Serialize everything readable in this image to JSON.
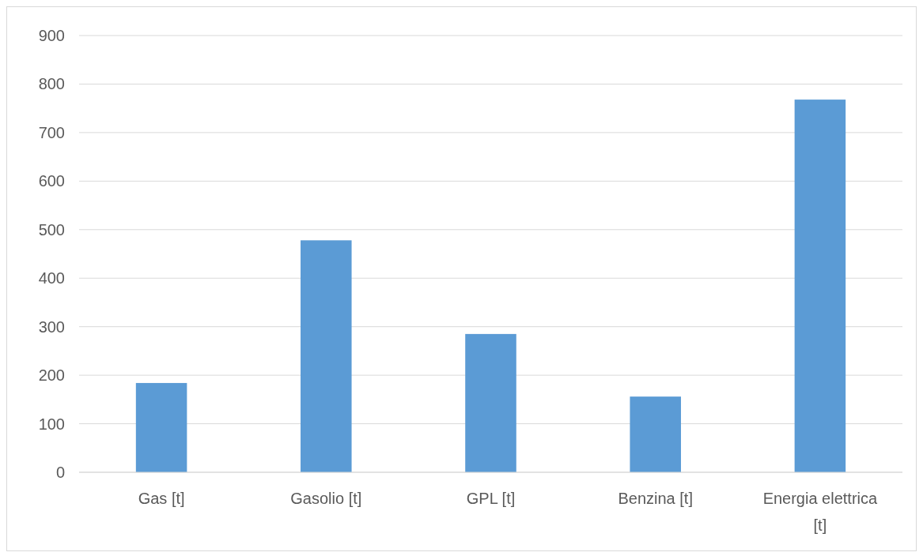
{
  "chart_data": {
    "type": "bar",
    "categories": [
      "Gas [t]",
      "Gasolio [t]",
      "GPL [t]",
      "Benzina [t]",
      "Energia elettrica [t]"
    ],
    "values": [
      184,
      478,
      285,
      156,
      768
    ],
    "color": "#5b9bd5",
    "ylim": [
      0,
      900
    ],
    "yticks": [
      0,
      100,
      200,
      300,
      400,
      500,
      600,
      700,
      800,
      900
    ],
    "grid": true
  }
}
